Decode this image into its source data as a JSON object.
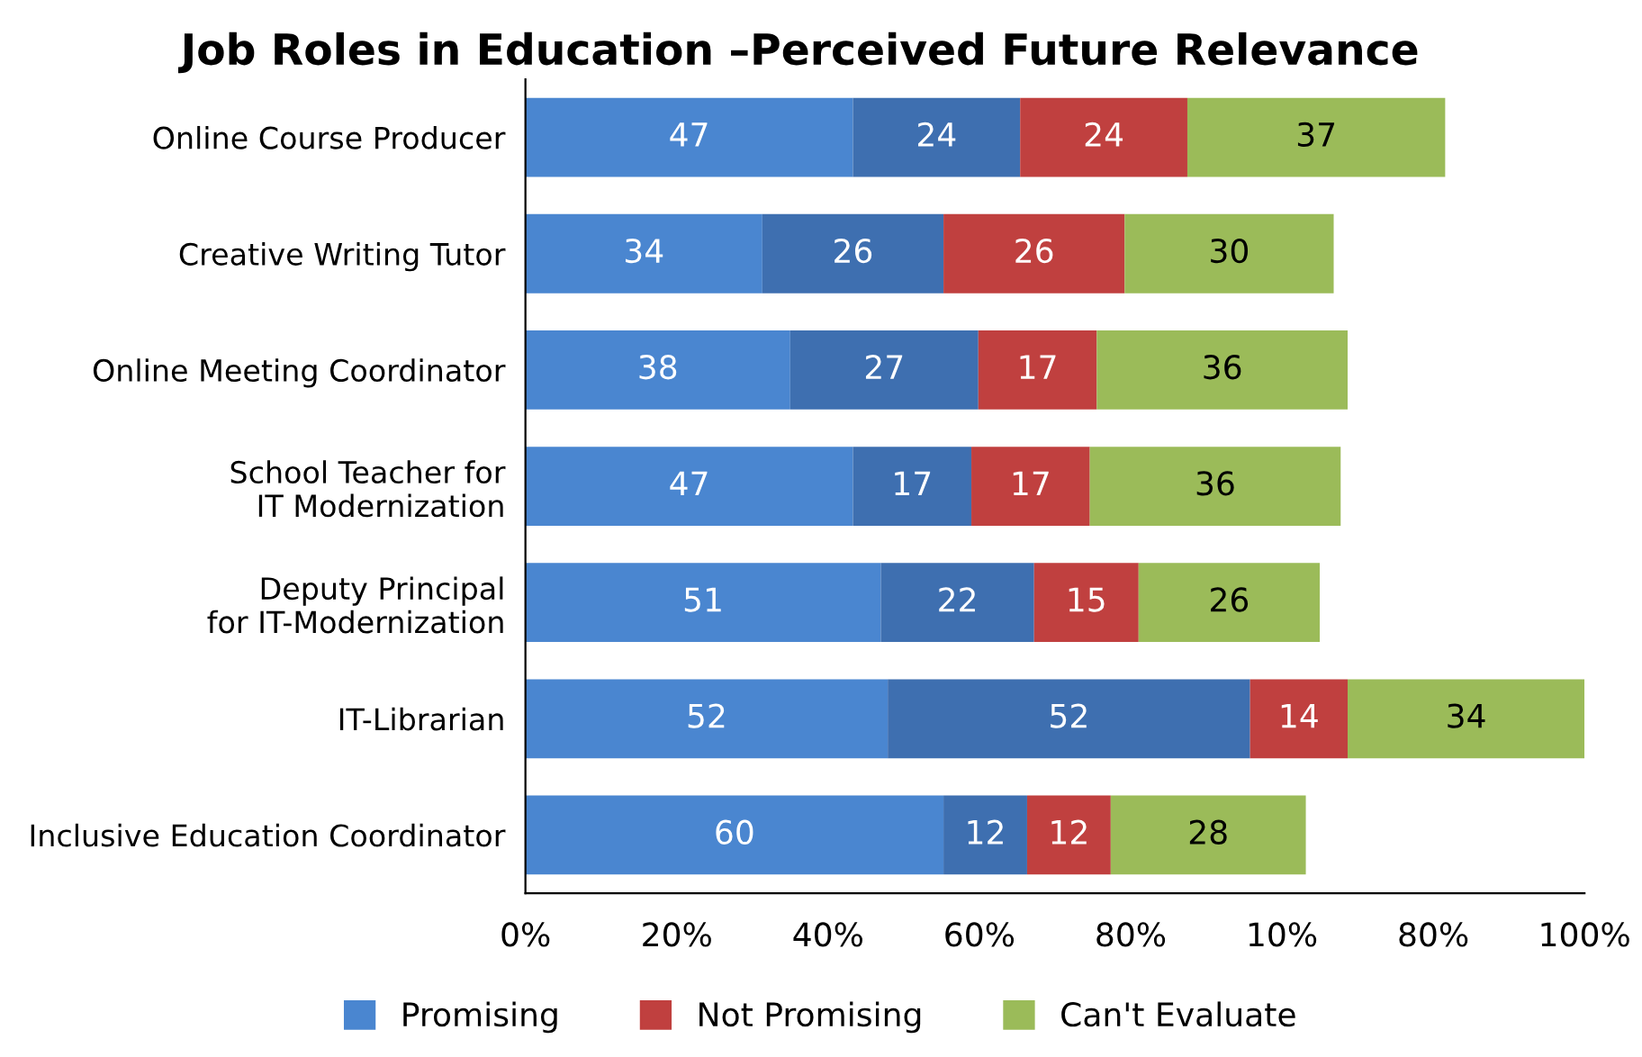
{
  "chart_data": {
    "type": "bar",
    "orientation": "horizontal",
    "stacked": true,
    "title": "Job Roles in Education –Perceived Future Relevance",
    "categories": [
      "Online Course Producer",
      "Creative Writing Tutor",
      "Online Meeting Coordinator",
      "School Teacher for\nIT Modernization",
      "Deputy Principal\nfor IT-Modernization",
      "IT-Librarian",
      "Inclusive Education Coordinator"
    ],
    "series": [
      {
        "name": "Promising",
        "color": "#4a86d0",
        "values": [
          47,
          34,
          38,
          47,
          51,
          52,
          60
        ]
      },
      {
        "color": "#3e6fb0",
        "values": [
          24,
          26,
          27,
          17,
          22,
          52,
          12
        ]
      },
      {
        "name": "Not Promising",
        "color": "#c0403f",
        "values": [
          24,
          26,
          17,
          17,
          15,
          14,
          12
        ]
      },
      {
        "name": "Can't Evaluate",
        "color": "#9bbb59",
        "values": [
          37,
          30,
          36,
          36,
          26,
          34,
          28
        ]
      }
    ],
    "data_labels": true,
    "annotations": [
      "0%",
      "20%",
      "40%",
      "60%",
      "80%",
      "10%",
      "80%",
      "100%"
    ],
    "legend": "bottom"
  }
}
